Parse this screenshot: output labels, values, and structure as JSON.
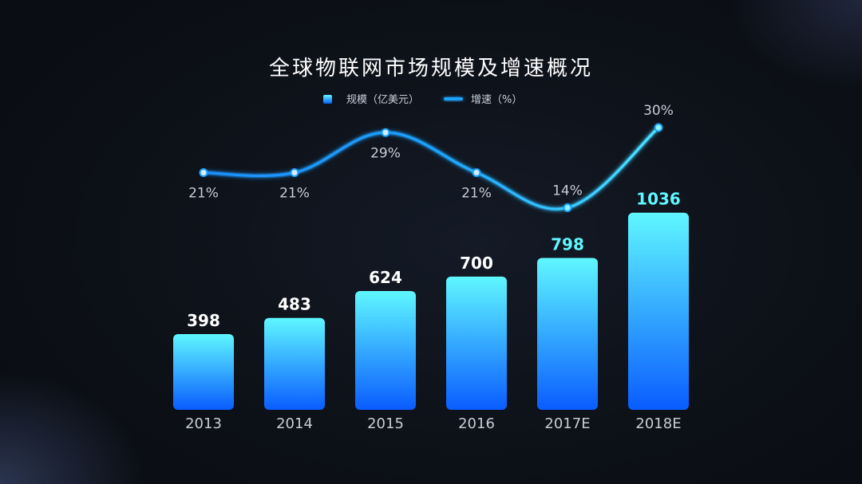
{
  "chart_data": {
    "type": "bar",
    "title": "全球物联网市场规模及增速概况",
    "categories": [
      "2013",
      "2014",
      "2015",
      "2016",
      "2017E",
      "2018E"
    ],
    "series": [
      {
        "name": "规模（亿美元）",
        "type": "bar",
        "values": [
          398,
          483,
          624,
          700,
          798,
          1036
        ],
        "value_labels": [
          "398",
          "483",
          "624",
          "700",
          "798",
          "1036"
        ]
      },
      {
        "name": "增速（%）",
        "type": "line",
        "values": [
          21,
          21,
          29,
          21,
          14,
          30
        ],
        "value_labels": [
          "21%",
          "21%",
          "29%",
          "21%",
          "14%",
          "30%"
        ]
      }
    ],
    "xlabel": "",
    "ylabel": "",
    "legend_position": "top-center",
    "grid": false,
    "colors": {
      "bar_top": "#5ff7ff",
      "bar_bottom": "#0a5cff",
      "line": "#1aa3ff",
      "value_label_normal": "#ffffff",
      "value_label_highlight": "#5ff7ff"
    },
    "highlighted_categories": [
      "2017E",
      "2018E"
    ]
  }
}
